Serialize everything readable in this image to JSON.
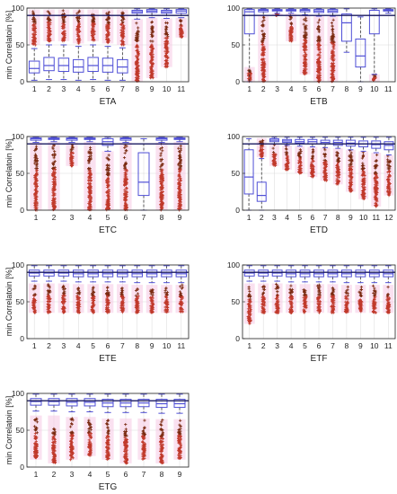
{
  "colors": {
    "box": "#4f4fd6",
    "whisker": "#333333",
    "outlier": "#c0392b",
    "outlier_dense": "#7a2a10",
    "band": "#f6c9e4",
    "threshold": "#1a1a60",
    "grid": "#d9d9d9"
  },
  "chart_data": [
    {
      "type": "box",
      "xlabel": "ETA",
      "ylabel": "min Correlatoin [%]",
      "ylim": [
        0,
        100
      ],
      "yticks": [
        0,
        50,
        100
      ],
      "threshold": 90,
      "grid": true,
      "categories": [
        "1",
        "2",
        "3",
        "4",
        "5",
        "6",
        "7",
        "8",
        "9",
        "10",
        "11"
      ],
      "boxes": [
        {
          "whislo": 2,
          "q1": 12,
          "med": 18,
          "q3": 28,
          "whishi": 45,
          "outliers_from": 50,
          "outliers_to": 98
        },
        {
          "whislo": 3,
          "q1": 15,
          "med": 22,
          "q3": 33,
          "whishi": 50,
          "outliers_from": 55,
          "outliers_to": 98
        },
        {
          "whislo": 3,
          "q1": 14,
          "med": 22,
          "q3": 32,
          "whishi": 50,
          "outliers_from": 55,
          "outliers_to": 98
        },
        {
          "whislo": 2,
          "q1": 13,
          "med": 20,
          "q3": 30,
          "whishi": 48,
          "outliers_from": 52,
          "outliers_to": 98
        },
        {
          "whislo": 3,
          "q1": 14,
          "med": 22,
          "q3": 33,
          "whishi": 50,
          "outliers_from": 55,
          "outliers_to": 98
        },
        {
          "whislo": 2,
          "q1": 13,
          "med": 22,
          "q3": 32,
          "whishi": 48,
          "outliers_from": 52,
          "outliers_to": 98
        },
        {
          "whislo": 2,
          "q1": 12,
          "med": 20,
          "q3": 30,
          "whishi": 46,
          "outliers_from": 50,
          "outliers_to": 98
        },
        {
          "whislo": 85,
          "q1": 93,
          "med": 95,
          "q3": 97,
          "whishi": 99,
          "outliers_from": 0,
          "outliers_to": 85
        },
        {
          "whislo": 87,
          "q1": 94,
          "med": 96,
          "q3": 98,
          "whishi": 99,
          "outliers_from": 5,
          "outliers_to": 87
        },
        {
          "whislo": 86,
          "q1": 93,
          "med": 95,
          "q3": 97,
          "whishi": 99,
          "outliers_from": 20,
          "outliers_to": 86
        },
        {
          "whislo": 87,
          "q1": 93,
          "med": 96,
          "q3": 98,
          "whishi": 99,
          "outliers_from": 60,
          "outliers_to": 87
        }
      ]
    },
    {
      "type": "box",
      "xlabel": "ETB",
      "ylabel": "",
      "ylim": [
        0,
        100
      ],
      "yticks": [
        0,
        50,
        100
      ],
      "threshold": 90,
      "grid": true,
      "categories": [
        "1",
        "2",
        "3",
        "4",
        "5",
        "6",
        "7",
        "8",
        "9",
        "10",
        "11"
      ],
      "boxes": [
        {
          "whislo": 0,
          "q1": 65,
          "med": 95,
          "q3": 98,
          "whishi": 99,
          "outliers_from": 0,
          "outliers_to": 20
        },
        {
          "whislo": 90,
          "q1": 95,
          "med": 97,
          "q3": 98,
          "whishi": 99,
          "outliers_from": 0,
          "outliers_to": 90
        },
        {
          "whislo": 93,
          "q1": 96,
          "med": 97,
          "q3": 98,
          "whishi": 99,
          "outliers_from": 90,
          "outliers_to": 93
        },
        {
          "whislo": 93,
          "q1": 96,
          "med": 97,
          "q3": 98,
          "whishi": 99,
          "outliers_from": 55,
          "outliers_to": 93
        },
        {
          "whislo": 91,
          "q1": 95,
          "med": 97,
          "q3": 98,
          "whishi": 99,
          "outliers_from": 10,
          "outliers_to": 91
        },
        {
          "whislo": 89,
          "q1": 94,
          "med": 96,
          "q3": 98,
          "whishi": 99,
          "outliers_from": 0,
          "outliers_to": 89
        },
        {
          "whislo": 89,
          "q1": 94,
          "med": 96,
          "q3": 98,
          "whishi": 99,
          "outliers_from": 0,
          "outliers_to": 89
        },
        {
          "whislo": 40,
          "q1": 55,
          "med": 80,
          "q3": 92,
          "whishi": 99,
          "outliers_from": 0,
          "outliers_to": 0
        },
        {
          "whislo": 0,
          "q1": 20,
          "med": 35,
          "q3": 58,
          "whishi": 88,
          "outliers_from": 0,
          "outliers_to": 0
        },
        {
          "whislo": 10,
          "q1": 65,
          "med": 90,
          "q3": 97,
          "whishi": 99,
          "outliers_from": 0,
          "outliers_to": 10
        },
        {
          "whislo": 93,
          "q1": 96,
          "med": 97,
          "q3": 98,
          "whishi": 99,
          "outliers_from": 0,
          "outliers_to": 0
        }
      ]
    },
    {
      "type": "box",
      "xlabel": "ETC",
      "ylabel": "min Correlatoin [%]",
      "ylim": [
        0,
        100
      ],
      "yticks": [
        0,
        50,
        100
      ],
      "threshold": 90,
      "grid": true,
      "categories": [
        "1",
        "2",
        "3",
        "4",
        "5",
        "6",
        "7",
        "8",
        "9"
      ],
      "boxes": [
        {
          "whislo": 92,
          "q1": 95,
          "med": 97,
          "q3": 98,
          "whishi": 99,
          "outliers_from": 0,
          "outliers_to": 92
        },
        {
          "whislo": 93,
          "q1": 96,
          "med": 97,
          "q3": 98,
          "whishi": 99,
          "outliers_from": 0,
          "outliers_to": 93
        },
        {
          "whislo": 92,
          "q1": 95,
          "med": 97,
          "q3": 98,
          "whishi": 99,
          "outliers_from": 60,
          "outliers_to": 92
        },
        {
          "whislo": 93,
          "q1": 96,
          "med": 97,
          "q3": 98,
          "whishi": 99,
          "outliers_from": 0,
          "outliers_to": 93
        },
        {
          "whislo": 80,
          "q1": 88,
          "med": 93,
          "q3": 97,
          "whishi": 99,
          "outliers_from": 0,
          "outliers_to": 80
        },
        {
          "whislo": 92,
          "q1": 95,
          "med": 97,
          "q3": 98,
          "whishi": 99,
          "outliers_from": 0,
          "outliers_to": 92
        },
        {
          "whislo": 0,
          "q1": 20,
          "med": 38,
          "q3": 78,
          "whishi": 97,
          "outliers_from": 0,
          "outliers_to": 0
        },
        {
          "whislo": 92,
          "q1": 95,
          "med": 97,
          "q3": 98,
          "whishi": 99,
          "outliers_from": 0,
          "outliers_to": 92
        },
        {
          "whislo": 93,
          "q1": 96,
          "med": 97,
          "q3": 98,
          "whishi": 99,
          "outliers_from": 0,
          "outliers_to": 93
        }
      ]
    },
    {
      "type": "box",
      "xlabel": "ETD",
      "ylabel": "",
      "ylim": [
        0,
        100
      ],
      "yticks": [
        0,
        50,
        100
      ],
      "threshold": 90,
      "grid": true,
      "categories": [
        "1",
        "2",
        "3",
        "4",
        "5",
        "6",
        "7",
        "8",
        "9",
        "10",
        "11",
        "12"
      ],
      "boxes": [
        {
          "whislo": 0,
          "q1": 22,
          "med": 45,
          "q3": 82,
          "whishi": 97,
          "outliers_from": 0,
          "outliers_to": 0
        },
        {
          "whislo": 0,
          "q1": 12,
          "med": 20,
          "q3": 38,
          "whishi": 70,
          "outliers_from": 72,
          "outliers_to": 98
        },
        {
          "whislo": 90,
          "q1": 93,
          "med": 95,
          "q3": 97,
          "whishi": 99,
          "outliers_from": 60,
          "outliers_to": 90
        },
        {
          "whislo": 88,
          "q1": 92,
          "med": 94,
          "q3": 96,
          "whishi": 99,
          "outliers_from": 55,
          "outliers_to": 88
        },
        {
          "whislo": 87,
          "q1": 91,
          "med": 93,
          "q3": 96,
          "whishi": 99,
          "outliers_from": 50,
          "outliers_to": 87
        },
        {
          "whislo": 86,
          "q1": 90,
          "med": 93,
          "q3": 96,
          "whishi": 99,
          "outliers_from": 45,
          "outliers_to": 86
        },
        {
          "whislo": 85,
          "q1": 90,
          "med": 92,
          "q3": 95,
          "whishi": 99,
          "outliers_from": 40,
          "outliers_to": 85
        },
        {
          "whislo": 84,
          "q1": 88,
          "med": 92,
          "q3": 95,
          "whishi": 99,
          "outliers_from": 35,
          "outliers_to": 84
        },
        {
          "whislo": 82,
          "q1": 87,
          "med": 91,
          "q3": 95,
          "whishi": 99,
          "outliers_from": 25,
          "outliers_to": 82
        },
        {
          "whislo": 80,
          "q1": 86,
          "med": 90,
          "q3": 94,
          "whishi": 99,
          "outliers_from": 15,
          "outliers_to": 80
        },
        {
          "whislo": 78,
          "q1": 84,
          "med": 89,
          "q3": 94,
          "whishi": 99,
          "outliers_from": 5,
          "outliers_to": 78
        },
        {
          "whislo": 75,
          "q1": 82,
          "med": 88,
          "q3": 93,
          "whishi": 99,
          "outliers_from": 20,
          "outliers_to": 75
        }
      ]
    },
    {
      "type": "box",
      "xlabel": "ETE",
      "ylabel": "min Correlatoin [%]",
      "ylim": [
        0,
        100
      ],
      "yticks": [
        0,
        50,
        100
      ],
      "threshold": 90,
      "grid": true,
      "categories": [
        "1",
        "2",
        "3",
        "4",
        "5",
        "6",
        "7",
        "8",
        "9",
        "10",
        "11"
      ],
      "boxes": [
        {
          "whislo": 78,
          "q1": 85,
          "med": 89,
          "q3": 93,
          "whishi": 99,
          "outliers_from": 35,
          "outliers_to": 75
        },
        {
          "whislo": 78,
          "q1": 85,
          "med": 89,
          "q3": 93,
          "whishi": 99,
          "outliers_from": 35,
          "outliers_to": 75
        },
        {
          "whislo": 78,
          "q1": 85,
          "med": 89,
          "q3": 93,
          "whishi": 99,
          "outliers_from": 35,
          "outliers_to": 75
        },
        {
          "whislo": 77,
          "q1": 84,
          "med": 88,
          "q3": 93,
          "whishi": 99,
          "outliers_from": 35,
          "outliers_to": 74
        },
        {
          "whislo": 77,
          "q1": 84,
          "med": 88,
          "q3": 93,
          "whishi": 99,
          "outliers_from": 35,
          "outliers_to": 74
        },
        {
          "whislo": 77,
          "q1": 84,
          "med": 88,
          "q3": 93,
          "whishi": 99,
          "outliers_from": 35,
          "outliers_to": 74
        },
        {
          "whislo": 77,
          "q1": 84,
          "med": 88,
          "q3": 93,
          "whishi": 99,
          "outliers_from": 35,
          "outliers_to": 74
        },
        {
          "whislo": 76,
          "q1": 84,
          "med": 88,
          "q3": 93,
          "whishi": 99,
          "outliers_from": 35,
          "outliers_to": 73
        },
        {
          "whislo": 76,
          "q1": 84,
          "med": 88,
          "q3": 93,
          "whishi": 99,
          "outliers_from": 35,
          "outliers_to": 73
        },
        {
          "whislo": 76,
          "q1": 84,
          "med": 88,
          "q3": 93,
          "whishi": 99,
          "outliers_from": 35,
          "outliers_to": 73
        },
        {
          "whislo": 76,
          "q1": 84,
          "med": 88,
          "q3": 93,
          "whishi": 99,
          "outliers_from": 35,
          "outliers_to": 73
        }
      ]
    },
    {
      "type": "box",
      "xlabel": "ETF",
      "ylabel": "",
      "ylim": [
        0,
        100
      ],
      "yticks": [
        0,
        50,
        100
      ],
      "threshold": 90,
      "grid": true,
      "categories": [
        "1",
        "2",
        "3",
        "4",
        "5",
        "6",
        "7",
        "8",
        "9",
        "10",
        "11"
      ],
      "boxes": [
        {
          "whislo": 78,
          "q1": 85,
          "med": 89,
          "q3": 93,
          "whishi": 99,
          "outliers_from": 20,
          "outliers_to": 75
        },
        {
          "whislo": 78,
          "q1": 85,
          "med": 89,
          "q3": 93,
          "whishi": 99,
          "outliers_from": 35,
          "outliers_to": 75
        },
        {
          "whislo": 78,
          "q1": 85,
          "med": 89,
          "q3": 93,
          "whishi": 99,
          "outliers_from": 35,
          "outliers_to": 75
        },
        {
          "whislo": 77,
          "q1": 84,
          "med": 88,
          "q3": 93,
          "whishi": 99,
          "outliers_from": 35,
          "outliers_to": 74
        },
        {
          "whislo": 77,
          "q1": 84,
          "med": 88,
          "q3": 93,
          "whishi": 99,
          "outliers_from": 35,
          "outliers_to": 74
        },
        {
          "whislo": 77,
          "q1": 84,
          "med": 88,
          "q3": 93,
          "whishi": 99,
          "outliers_from": 35,
          "outliers_to": 74
        },
        {
          "whislo": 77,
          "q1": 84,
          "med": 88,
          "q3": 93,
          "whishi": 99,
          "outliers_from": 35,
          "outliers_to": 74
        },
        {
          "whislo": 76,
          "q1": 84,
          "med": 88,
          "q3": 93,
          "whishi": 99,
          "outliers_from": 35,
          "outliers_to": 73
        },
        {
          "whislo": 76,
          "q1": 84,
          "med": 88,
          "q3": 93,
          "whishi": 99,
          "outliers_from": 35,
          "outliers_to": 73
        },
        {
          "whislo": 76,
          "q1": 84,
          "med": 88,
          "q3": 93,
          "whishi": 99,
          "outliers_from": 35,
          "outliers_to": 73
        },
        {
          "whislo": 76,
          "q1": 84,
          "med": 88,
          "q3": 93,
          "whishi": 99,
          "outliers_from": 35,
          "outliers_to": 73
        }
      ]
    },
    {
      "type": "box",
      "xlabel": "ETG",
      "ylabel": "min Correlatoin [%]",
      "ylim": [
        0,
        100
      ],
      "yticks": [
        0,
        50,
        100
      ],
      "threshold": 90,
      "grid": true,
      "categories": [
        "1",
        "2",
        "3",
        "4",
        "5",
        "6",
        "7",
        "8",
        "9"
      ],
      "boxes": [
        {
          "whislo": 76,
          "q1": 84,
          "med": 89,
          "q3": 93,
          "whishi": 99,
          "outliers_from": 10,
          "outliers_to": 70
        },
        {
          "whislo": 76,
          "q1": 84,
          "med": 89,
          "q3": 93,
          "whishi": 99,
          "outliers_from": 5,
          "outliers_to": 70
        },
        {
          "whislo": 75,
          "q1": 83,
          "med": 88,
          "q3": 93,
          "whishi": 99,
          "outliers_from": 10,
          "outliers_to": 68
        },
        {
          "whislo": 75,
          "q1": 83,
          "med": 88,
          "q3": 93,
          "whishi": 99,
          "outliers_from": 15,
          "outliers_to": 68
        },
        {
          "whislo": 74,
          "q1": 82,
          "med": 87,
          "q3": 92,
          "whishi": 99,
          "outliers_from": 10,
          "outliers_to": 66
        },
        {
          "whislo": 74,
          "q1": 82,
          "med": 87,
          "q3": 92,
          "whishi": 99,
          "outliers_from": 5,
          "outliers_to": 66
        },
        {
          "whislo": 74,
          "q1": 82,
          "med": 87,
          "q3": 92,
          "whishi": 99,
          "outliers_from": 10,
          "outliers_to": 66
        },
        {
          "whislo": 73,
          "q1": 81,
          "med": 86,
          "q3": 92,
          "whishi": 99,
          "outliers_from": 5,
          "outliers_to": 65
        },
        {
          "whislo": 73,
          "q1": 81,
          "med": 86,
          "q3": 92,
          "whishi": 99,
          "outliers_from": 10,
          "outliers_to": 65
        }
      ]
    }
  ]
}
